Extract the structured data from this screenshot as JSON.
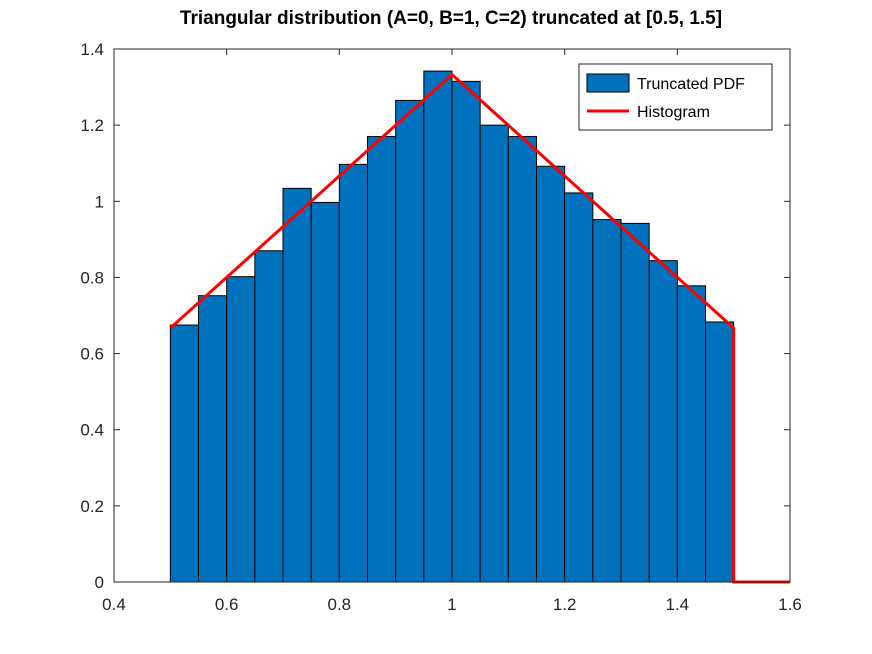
{
  "chart_data": {
    "type": "bar",
    "title": "Triangular distribution (A=0, B=1, C=2) truncated at [0.5, 1.5]",
    "xlabel": "",
    "ylabel": "",
    "xlim": [
      0.4,
      1.6
    ],
    "ylim": [
      0,
      1.4
    ],
    "xticks": [
      0.4,
      0.6,
      0.8,
      1.0,
      1.2,
      1.4,
      1.6
    ],
    "xtick_labels": [
      "0.4",
      "0.6",
      "0.8",
      "1",
      "1.2",
      "1.4",
      "1.6"
    ],
    "yticks": [
      0,
      0.2,
      0.4,
      0.6,
      0.8,
      1.0,
      1.2,
      1.4
    ],
    "ytick_labels": [
      "0",
      "0.2",
      "0.4",
      "0.6",
      "0.8",
      "1",
      "1.2",
      "1.4"
    ],
    "grid": false,
    "legend_position": "top-right",
    "bars": {
      "name": "Truncated PDF",
      "color": "#0072BD",
      "bin_edges": [
        0.5,
        0.55,
        0.6,
        0.65,
        0.7,
        0.75,
        0.8,
        0.85,
        0.9,
        0.95,
        1.0,
        1.05,
        1.1,
        1.15,
        1.2,
        1.25,
        1.3,
        1.35,
        1.4,
        1.45,
        1.5
      ],
      "values": [
        0.675,
        0.752,
        0.802,
        0.87,
        1.034,
        0.997,
        1.097,
        1.17,
        1.265,
        1.342,
        1.315,
        1.2,
        1.17,
        1.092,
        1.022,
        0.952,
        0.942,
        0.844,
        0.778,
        0.683
      ]
    },
    "line": {
      "name": "Histogram",
      "color": "#FF0000",
      "x": [
        0.5,
        1.0,
        1.5,
        1.5,
        1.6
      ],
      "y": [
        0.667,
        1.333,
        0.667,
        0.0,
        0.0
      ]
    }
  }
}
